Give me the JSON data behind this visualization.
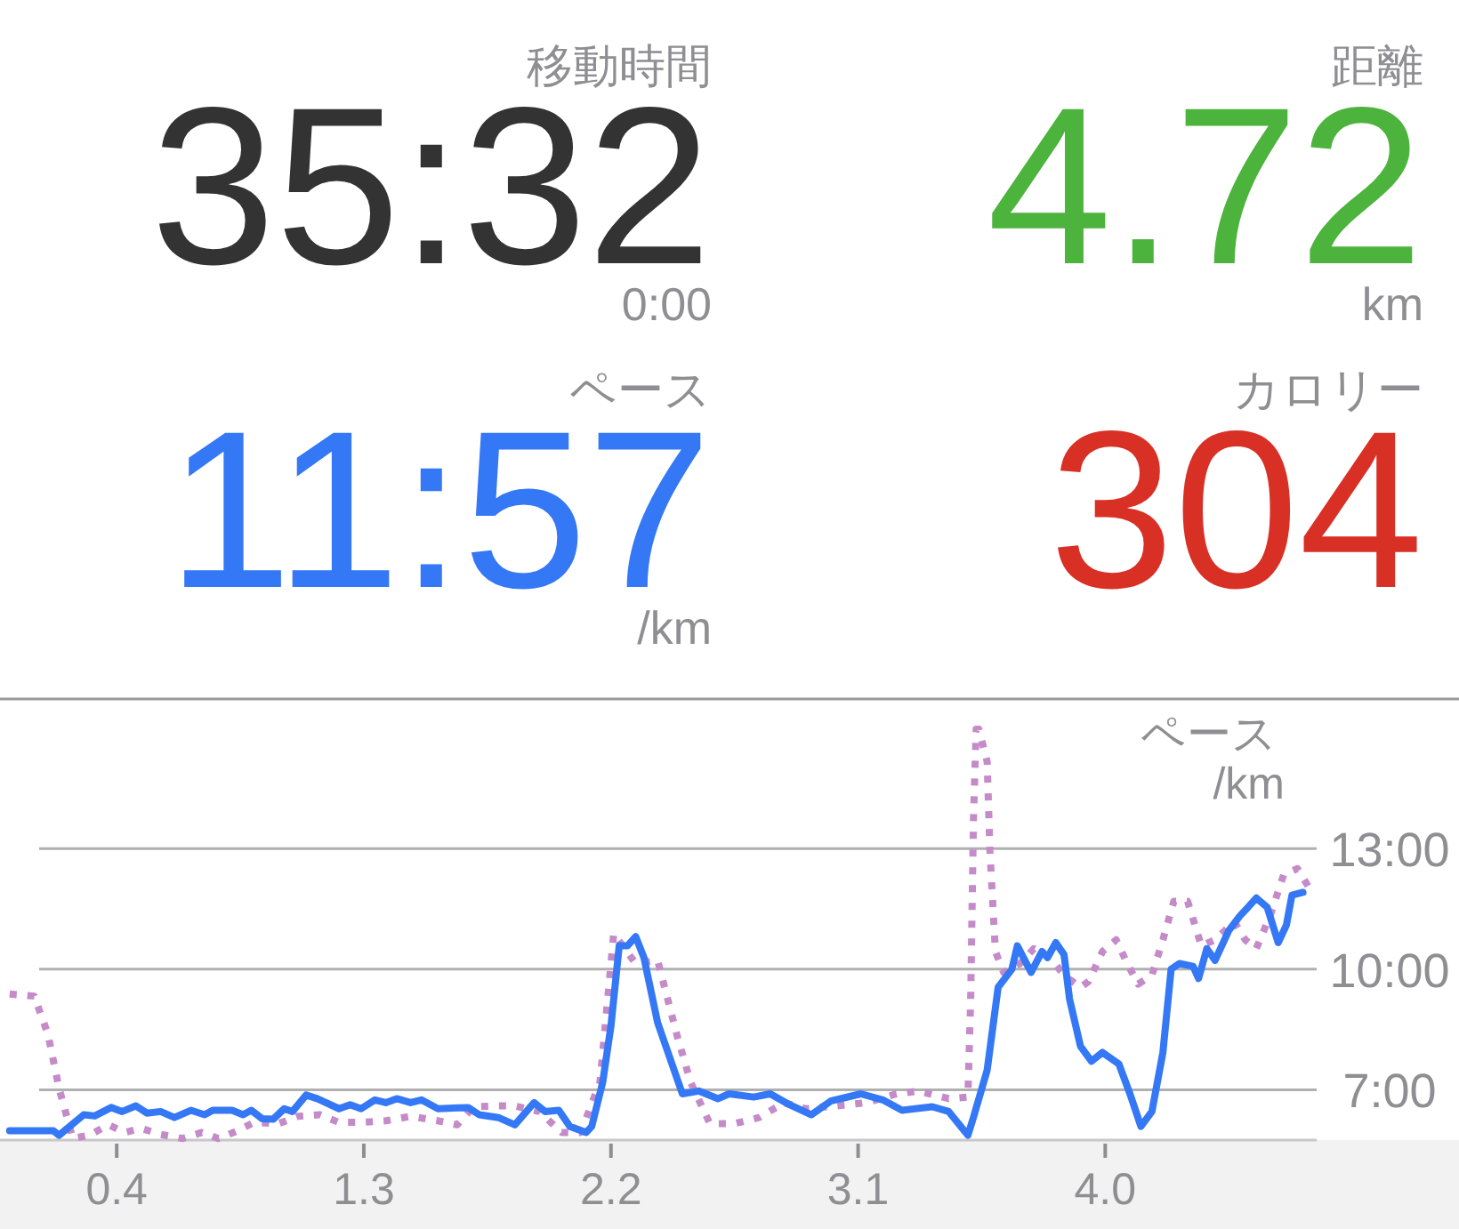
{
  "chart_data": [
    {
      "type": "other",
      "annotations": [
        "移動時間",
        "35:32",
        "0:00",
        "距離",
        "4.72",
        "km",
        "ペース",
        "11:57",
        "/km",
        "カロリー",
        "304"
      ]
    },
    {
      "type": "line",
      "ylabel": "ペース /km",
      "xlim": [
        -0.025,
        4.77
      ],
      "xticks": [
        0.4,
        1.3,
        2.2,
        3.1,
        {
          "value": 4,
          "label": "4.0"
        }
      ],
      "ylim": [
        5.75,
        16.6
      ],
      "yticks": [
        {
          "value": 7,
          "label": "7:00"
        },
        {
          "value": 10,
          "label": "10:00"
        },
        {
          "value": 13,
          "label": "13:00"
        }
      ],
      "grid": "y",
      "series": [
        {
          "color": "#c58bc9",
          "line_style": "dotted",
          "x": [
            0.01,
            0.1,
            0.15,
            0.19,
            0.24,
            0.3,
            0.37,
            0.43,
            0.49,
            0.56,
            0.64,
            0.71,
            0.77,
            0.84,
            0.9,
            0.99,
            1.06,
            1.14,
            1.21,
            1.29,
            1.38,
            1.47,
            1.57,
            1.64,
            1.7,
            1.79,
            1.85,
            1.94,
            2.02,
            2.09,
            2.16,
            2.21,
            2.29,
            2.37,
            2.44,
            2.49,
            2.56,
            2.65,
            2.74,
            2.83,
            2.91,
            3.02,
            3.13,
            3.24,
            3.32,
            3.43,
            3.5,
            3.51,
            3.52,
            3.53,
            3.54,
            3.57,
            3.58,
            3.6,
            3.63,
            3.69,
            3.74,
            3.8,
            3.85,
            3.91,
            3.94,
            3.99,
            4.04,
            4.08,
            4.12,
            4.17,
            4.21,
            4.25,
            4.3,
            4.35,
            4.4,
            4.47,
            4.51,
            4.55,
            4.6,
            4.65,
            4.7,
            4.75
          ],
          "values": [
            9.38,
            9.33,
            8.37,
            7.04,
            5.79,
            5.87,
            6.13,
            5.94,
            6.04,
            5.89,
            5.79,
            5.94,
            5.79,
            5.98,
            6.19,
            6.16,
            6.34,
            6.38,
            6.19,
            6.19,
            6.23,
            6.34,
            6.23,
            6.13,
            6.58,
            6.6,
            6.6,
            6.46,
            5.94,
            5.94,
            7.19,
            10.88,
            10.14,
            10.22,
            8.37,
            7.19,
            6.16,
            6.16,
            6.31,
            6.68,
            6.53,
            6.6,
            6.68,
            6.9,
            6.97,
            6.78,
            6.82,
            9.26,
            13.68,
            15.97,
            15.97,
            15.16,
            12.95,
            10.44,
            9.92,
            10.14,
            10.51,
            10.29,
            9.85,
            9.55,
            9.7,
            10.44,
            10.73,
            10.14,
            9.63,
            9.85,
            10.73,
            11.69,
            11.69,
            10.58,
            10.73,
            11.18,
            10.73,
            10.51,
            11.32,
            12.35,
            12.5,
            11.94
          ]
        },
        {
          "color": "#3478f6",
          "line_style": "solid",
          "x": [
            0.01,
            0.17,
            0.19,
            0.22,
            0.28,
            0.32,
            0.38,
            0.42,
            0.47,
            0.51,
            0.56,
            0.61,
            0.67,
            0.72,
            0.75,
            0.82,
            0.86,
            0.89,
            0.93,
            0.97,
            1.01,
            1.04,
            1.09,
            1.13,
            1.21,
            1.25,
            1.29,
            1.34,
            1.38,
            1.42,
            1.47,
            1.51,
            1.57,
            1.68,
            1.72,
            1.79,
            1.85,
            1.92,
            1.96,
            2.01,
            2.05,
            2.11,
            2.13,
            2.17,
            2.2,
            2.23,
            2.26,
            2.29,
            2.32,
            2.37,
            2.46,
            2.52,
            2.59,
            2.63,
            2.72,
            2.78,
            2.85,
            2.93,
            3.0,
            3.11,
            3.19,
            3.26,
            3.37,
            3.43,
            3.5,
            3.52,
            3.57,
            3.61,
            3.66,
            3.68,
            3.73,
            3.77,
            3.79,
            3.82,
            3.85,
            3.87,
            3.91,
            3.95,
            3.99,
            4.05,
            4.09,
            4.13,
            4.17,
            4.21,
            4.24,
            4.27,
            4.32,
            4.34,
            4.37,
            4.4,
            4.45,
            4.49,
            4.52,
            4.55,
            4.59,
            4.63,
            4.66,
            4.68,
            4.72
          ],
          "values": [
            5.98,
            5.98,
            5.87,
            6.04,
            6.38,
            6.35,
            6.56,
            6.46,
            6.6,
            6.42,
            6.46,
            6.31,
            6.49,
            6.38,
            6.49,
            6.49,
            6.38,
            6.49,
            6.28,
            6.27,
            6.53,
            6.46,
            6.87,
            6.78,
            6.53,
            6.63,
            6.53,
            6.75,
            6.68,
            6.78,
            6.68,
            6.75,
            6.53,
            6.56,
            6.38,
            6.31,
            6.13,
            6.68,
            6.46,
            6.49,
            6.09,
            5.94,
            6.09,
            7.19,
            8.59,
            10.58,
            10.58,
            10.81,
            10.29,
            8.67,
            6.9,
            6.97,
            6.78,
            6.9,
            6.82,
            6.9,
            6.63,
            6.38,
            6.72,
            6.9,
            6.75,
            6.49,
            6.58,
            6.46,
            5.87,
            6.31,
            7.49,
            9.55,
            10.0,
            10.58,
            9.92,
            10.44,
            10.29,
            10.66,
            10.36,
            9.26,
            8.08,
            7.71,
            7.93,
            7.64,
            6.9,
            6.09,
            6.46,
            7.93,
            10.0,
            10.14,
            10.07,
            9.77,
            10.51,
            10.22,
            10.96,
            11.32,
            11.54,
            11.77,
            11.54,
            10.66,
            11.1,
            11.84,
            11.91
          ]
        }
      ]
    }
  ]
}
